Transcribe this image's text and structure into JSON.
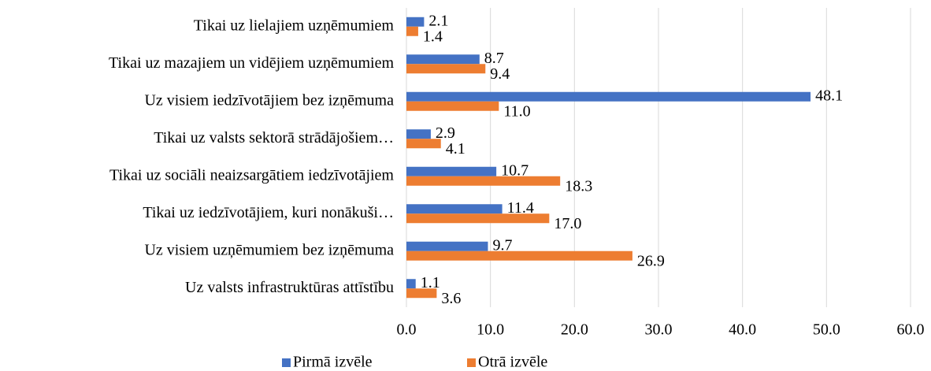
{
  "chart_data": {
    "type": "hbar",
    "categories": [
      "Tikai uz lielajiem uzņēmumiem",
      "Tikai uz mazajiem un vidējiem uzņēmumiem",
      "Uz visiem iedzīvotājiem bez izņēmuma",
      "Tikai uz valsts sektorā strādājošiem…",
      "Tikai uz sociāli neaizsargātiem iedzīvotājiem",
      "Tikai uz iedzīvotājiem, kuri nonākuši…",
      "Uz visiem uzņēmumiem bez izņēmuma",
      "Uz valsts infrastruktūras attīstību"
    ],
    "series": [
      {
        "name": "Pirmā izvēle",
        "color": "#4472c4",
        "values": [
          2.1,
          8.7,
          48.1,
          2.9,
          10.7,
          11.4,
          9.7,
          1.1
        ],
        "value_labels": [
          "2.1",
          "8.7",
          "48.1",
          "2.9",
          "10.7",
          "11.4",
          "9.7",
          "1.1"
        ]
      },
      {
        "name": "Otrā izvēle",
        "color": "#ed7d31",
        "values": [
          1.4,
          9.4,
          11,
          4.1,
          18.3,
          17,
          26.9,
          3.6
        ],
        "value_labels": [
          "1.4",
          "9.4",
          "11.0",
          "4.1",
          "18.3",
          "17.0",
          "26.9",
          "3.6"
        ]
      }
    ],
    "xlim": [
      0,
      60
    ],
    "xticks": [
      {
        "value": 0,
        "label": "0.0"
      },
      {
        "value": 10,
        "label": "10.0"
      },
      {
        "value": 20,
        "label": "20.0"
      },
      {
        "value": 30,
        "label": "30.0"
      },
      {
        "value": 40,
        "label": "40.0"
      },
      {
        "value": 50,
        "label": "50.0"
      },
      {
        "value": 60,
        "label": "60.0"
      }
    ],
    "grid": true,
    "legend": "bottom"
  }
}
